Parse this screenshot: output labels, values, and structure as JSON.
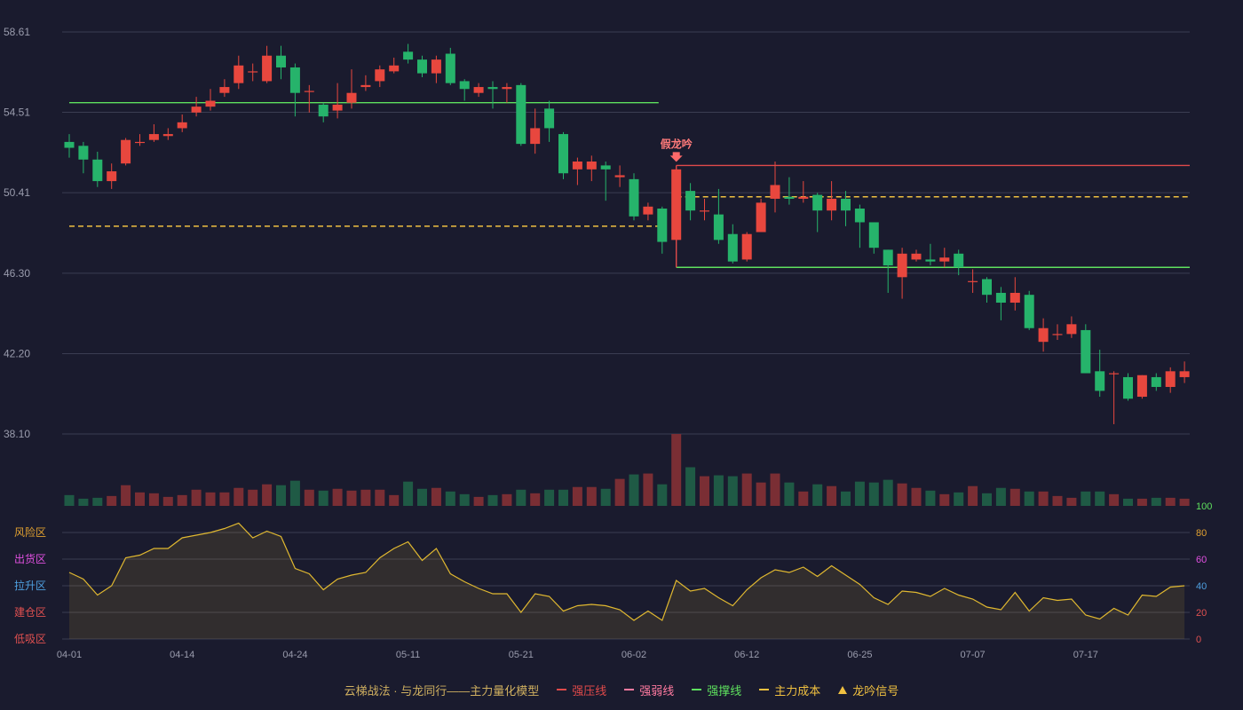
{
  "chart_data": {
    "type": "candlestick",
    "price_axis": {
      "ticks": [
        "58.61",
        "54.51",
        "50.41",
        "46.30",
        "42.20",
        "38.10"
      ],
      "min": 38.1,
      "max": 58.61
    },
    "date_ticks": [
      {
        "index": 0,
        "label": "04-01"
      },
      {
        "index": 8,
        "label": "04-14"
      },
      {
        "index": 16,
        "label": "04-24"
      },
      {
        "index": 24,
        "label": "05-11"
      },
      {
        "index": 32,
        "label": "05-21"
      },
      {
        "index": 40,
        "label": "06-02"
      },
      {
        "index": 48,
        "label": "06-12"
      },
      {
        "index": 56,
        "label": "06-25"
      },
      {
        "index": 64,
        "label": "07-07"
      },
      {
        "index": 72,
        "label": "07-17"
      }
    ],
    "candles": [
      [
        53.0,
        52.7,
        53.4,
        52.2,
        1.2
      ],
      [
        52.8,
        52.1,
        53.0,
        51.4,
        0.8
      ],
      [
        52.1,
        51.0,
        52.5,
        50.7,
        0.9
      ],
      [
        51.0,
        51.5,
        51.9,
        50.6,
        1.1
      ],
      [
        51.9,
        53.1,
        53.2,
        51.8,
        2.3
      ],
      [
        53.0,
        53.0,
        53.4,
        52.8,
        1.5
      ],
      [
        53.1,
        53.4,
        53.9,
        53.0,
        1.4
      ],
      [
        53.3,
        53.4,
        53.7,
        53.1,
        1.0
      ],
      [
        53.7,
        54.0,
        54.4,
        53.5,
        1.2
      ],
      [
        54.5,
        54.8,
        55.3,
        54.3,
        1.8
      ],
      [
        54.8,
        55.1,
        55.7,
        54.6,
        1.5
      ],
      [
        55.5,
        55.8,
        56.2,
        55.3,
        1.5
      ],
      [
        56.0,
        56.9,
        57.4,
        55.7,
        2.0
      ],
      [
        56.6,
        56.6,
        57.0,
        56.1,
        1.8
      ],
      [
        56.1,
        57.4,
        57.9,
        56.0,
        2.4
      ],
      [
        57.4,
        56.8,
        57.9,
        56.2,
        2.3
      ],
      [
        56.8,
        55.5,
        57.0,
        54.3,
        2.8
      ],
      [
        55.6,
        55.6,
        55.9,
        54.5,
        1.8
      ],
      [
        54.9,
        54.3,
        55.0,
        54.0,
        1.7
      ],
      [
        54.6,
        54.9,
        56.0,
        54.2,
        1.9
      ],
      [
        55.0,
        55.5,
        56.7,
        54.7,
        1.7
      ],
      [
        55.8,
        55.9,
        56.4,
        55.6,
        1.8
      ],
      [
        56.1,
        56.7,
        56.9,
        55.8,
        1.8
      ],
      [
        56.6,
        56.9,
        57.3,
        56.5,
        1.2
      ],
      [
        57.6,
        57.2,
        58.0,
        57.0,
        2.7
      ],
      [
        57.2,
        56.5,
        57.4,
        56.3,
        1.9
      ],
      [
        56.5,
        57.2,
        57.4,
        56.0,
        2.0
      ],
      [
        57.5,
        56.0,
        57.8,
        55.9,
        1.6
      ],
      [
        56.1,
        55.7,
        56.2,
        55.1,
        1.3
      ],
      [
        55.5,
        55.8,
        56.0,
        55.3,
        1.0
      ],
      [
        55.8,
        55.7,
        56.1,
        54.7,
        1.2
      ],
      [
        55.7,
        55.8,
        56.0,
        55.0,
        1.3
      ],
      [
        55.9,
        52.9,
        56.0,
        52.8,
        1.8
      ],
      [
        52.9,
        53.7,
        54.7,
        52.4,
        1.4
      ],
      [
        54.7,
        53.7,
        55.1,
        53.0,
        1.8
      ],
      [
        53.4,
        51.4,
        53.5,
        51.1,
        1.8
      ],
      [
        51.6,
        52.0,
        52.2,
        50.8,
        2.1
      ],
      [
        51.6,
        52.0,
        52.3,
        51.0,
        2.1
      ],
      [
        51.8,
        51.6,
        52.0,
        50.0,
        1.9
      ],
      [
        51.2,
        51.3,
        51.8,
        50.7,
        3.0
      ],
      [
        51.1,
        49.2,
        51.4,
        49.0,
        3.5
      ],
      [
        49.3,
        49.7,
        49.9,
        49.0,
        3.6
      ],
      [
        49.6,
        47.9,
        49.7,
        47.3,
        2.4
      ],
      [
        48.0,
        51.6,
        51.6,
        48.0,
        8.0
      ],
      [
        50.5,
        49.5,
        50.9,
        49.0,
        4.3
      ],
      [
        49.5,
        49.5,
        50.1,
        49.0,
        3.3
      ],
      [
        49.3,
        48.0,
        50.6,
        47.8,
        3.4
      ],
      [
        48.3,
        46.9,
        48.8,
        46.8,
        3.3
      ],
      [
        47.0,
        48.3,
        48.4,
        46.9,
        3.6
      ],
      [
        48.4,
        49.9,
        50.1,
        48.4,
        2.6
      ],
      [
        50.1,
        50.8,
        52.0,
        49.4,
        3.6
      ],
      [
        50.2,
        50.1,
        51.2,
        49.8,
        2.6
      ],
      [
        50.1,
        50.2,
        51.0,
        49.9,
        1.6
      ],
      [
        50.3,
        49.5,
        50.4,
        48.4,
        2.4
      ],
      [
        49.5,
        50.1,
        51.0,
        49.0,
        2.2
      ],
      [
        50.1,
        49.5,
        50.5,
        48.7,
        1.6
      ],
      [
        49.6,
        48.9,
        49.8,
        47.6,
        2.7
      ],
      [
        48.9,
        47.6,
        48.9,
        47.3,
        2.6
      ],
      [
        47.5,
        46.7,
        47.5,
        45.3,
        2.9
      ],
      [
        46.1,
        47.3,
        47.6,
        45.0,
        2.5
      ],
      [
        47.0,
        47.3,
        47.5,
        46.9,
        2.0
      ],
      [
        47.0,
        46.9,
        47.8,
        46.7,
        1.7
      ],
      [
        46.9,
        47.1,
        47.6,
        46.6,
        1.3
      ],
      [
        47.3,
        46.6,
        47.5,
        46.2,
        1.5
      ],
      [
        45.9,
        45.9,
        46.5,
        45.3,
        2.2
      ],
      [
        46.0,
        45.2,
        46.1,
        44.8,
        1.4
      ],
      [
        45.3,
        44.8,
        45.6,
        43.9,
        2.0
      ],
      [
        44.8,
        45.3,
        46.1,
        44.4,
        1.9
      ],
      [
        45.2,
        43.5,
        45.4,
        43.4,
        1.6
      ],
      [
        42.8,
        43.5,
        44.0,
        42.3,
        1.6
      ],
      [
        43.2,
        43.2,
        43.7,
        42.9,
        1.1
      ],
      [
        43.2,
        43.7,
        44.1,
        43.0,
        0.9
      ],
      [
        43.4,
        41.2,
        43.7,
        41.2,
        1.6
      ],
      [
        41.3,
        40.3,
        42.4,
        40.0,
        1.6
      ],
      [
        41.2,
        41.2,
        41.3,
        38.6,
        1.3
      ],
      [
        41.0,
        39.9,
        41.2,
        39.8,
        0.8
      ],
      [
        40.0,
        41.1,
        41.1,
        39.9,
        0.8
      ],
      [
        41.0,
        40.5,
        41.2,
        40.3,
        0.9
      ],
      [
        40.5,
        41.3,
        41.5,
        40.2,
        0.9
      ],
      [
        41.0,
        41.3,
        41.8,
        40.7,
        0.8
      ]
    ],
    "lines": {
      "green_top": {
        "value": 55.0,
        "from": 0,
        "to": 42
      },
      "yellow_dash_left": {
        "value": 48.7,
        "from": 0,
        "to": 42
      },
      "red_box_top": {
        "value": 51.8,
        "from": 43,
        "to": 79
      },
      "green_box_bottom": {
        "value": 46.6,
        "from": 43,
        "to": 79
      },
      "yellow_dash_right": {
        "value": 50.2,
        "from": 43,
        "to": 79
      }
    },
    "signal": {
      "label": "假龙吟",
      "index": 43
    },
    "indicator": {
      "right_ticks": [
        {
          "value": 100,
          "label": "100",
          "color": "#5ee05e"
        },
        {
          "value": 80,
          "label": "80",
          "color": "#e0a030"
        },
        {
          "value": 60,
          "label": "60",
          "color": "#e050e0"
        },
        {
          "value": 40,
          "label": "40",
          "color": "#4ea0e0"
        },
        {
          "value": 20,
          "label": "20",
          "color": "#e05050"
        },
        {
          "value": 0,
          "label": "0",
          "color": "#e05050"
        }
      ],
      "zones": [
        {
          "value": 80,
          "label": "风险区",
          "color": "#e0a030"
        },
        {
          "value": 60,
          "label": "出货区",
          "color": "#e050e0"
        },
        {
          "value": 40,
          "label": "拉升区",
          "color": "#4ea0e0"
        },
        {
          "value": 20,
          "label": "建仓区",
          "color": "#e05050"
        },
        {
          "value": 0,
          "label": "低吸区",
          "color": "#e05050"
        }
      ],
      "values": [
        50,
        45,
        33,
        40,
        61,
        63,
        68,
        68,
        76,
        78,
        80,
        83,
        87,
        76,
        81,
        77,
        53,
        49,
        37,
        45,
        48,
        50,
        61,
        68,
        73,
        59,
        68,
        49,
        43,
        38,
        34,
        34,
        20,
        34,
        32,
        21,
        25,
        26,
        25,
        22,
        14,
        21,
        14,
        44,
        36,
        38,
        31,
        25,
        37,
        46,
        52,
        50,
        54,
        47,
        55,
        48,
        41,
        31,
        26,
        36,
        35,
        32,
        38,
        33,
        30,
        24,
        22,
        35,
        21,
        31,
        29,
        30,
        18,
        15,
        23,
        18,
        33,
        32,
        39,
        40
      ]
    },
    "legend": {
      "title": "云梯战法 · 与龙同行——主力量化模型",
      "items": [
        {
          "label": "强压线",
          "color": "#e04a4a",
          "style": "solid"
        },
        {
          "label": "强弱线",
          "color": "#ff7aa0",
          "style": "dashed"
        },
        {
          "label": "强撑线",
          "color": "#5ee05e",
          "style": "solid"
        },
        {
          "label": "主力成本",
          "color": "#f0c040",
          "style": "dashed"
        },
        {
          "label": "龙吟信号",
          "color": "#f0c040",
          "style": "triangle"
        }
      ]
    },
    "colors": {
      "up": "#e8473e",
      "down": "#26b36b",
      "up_vol": "#7a2e34",
      "down_vol": "#1f5a45",
      "grid": "#3b3d52",
      "axis_text": "#9a9cad",
      "indicator_line": "#e0b830"
    }
  }
}
